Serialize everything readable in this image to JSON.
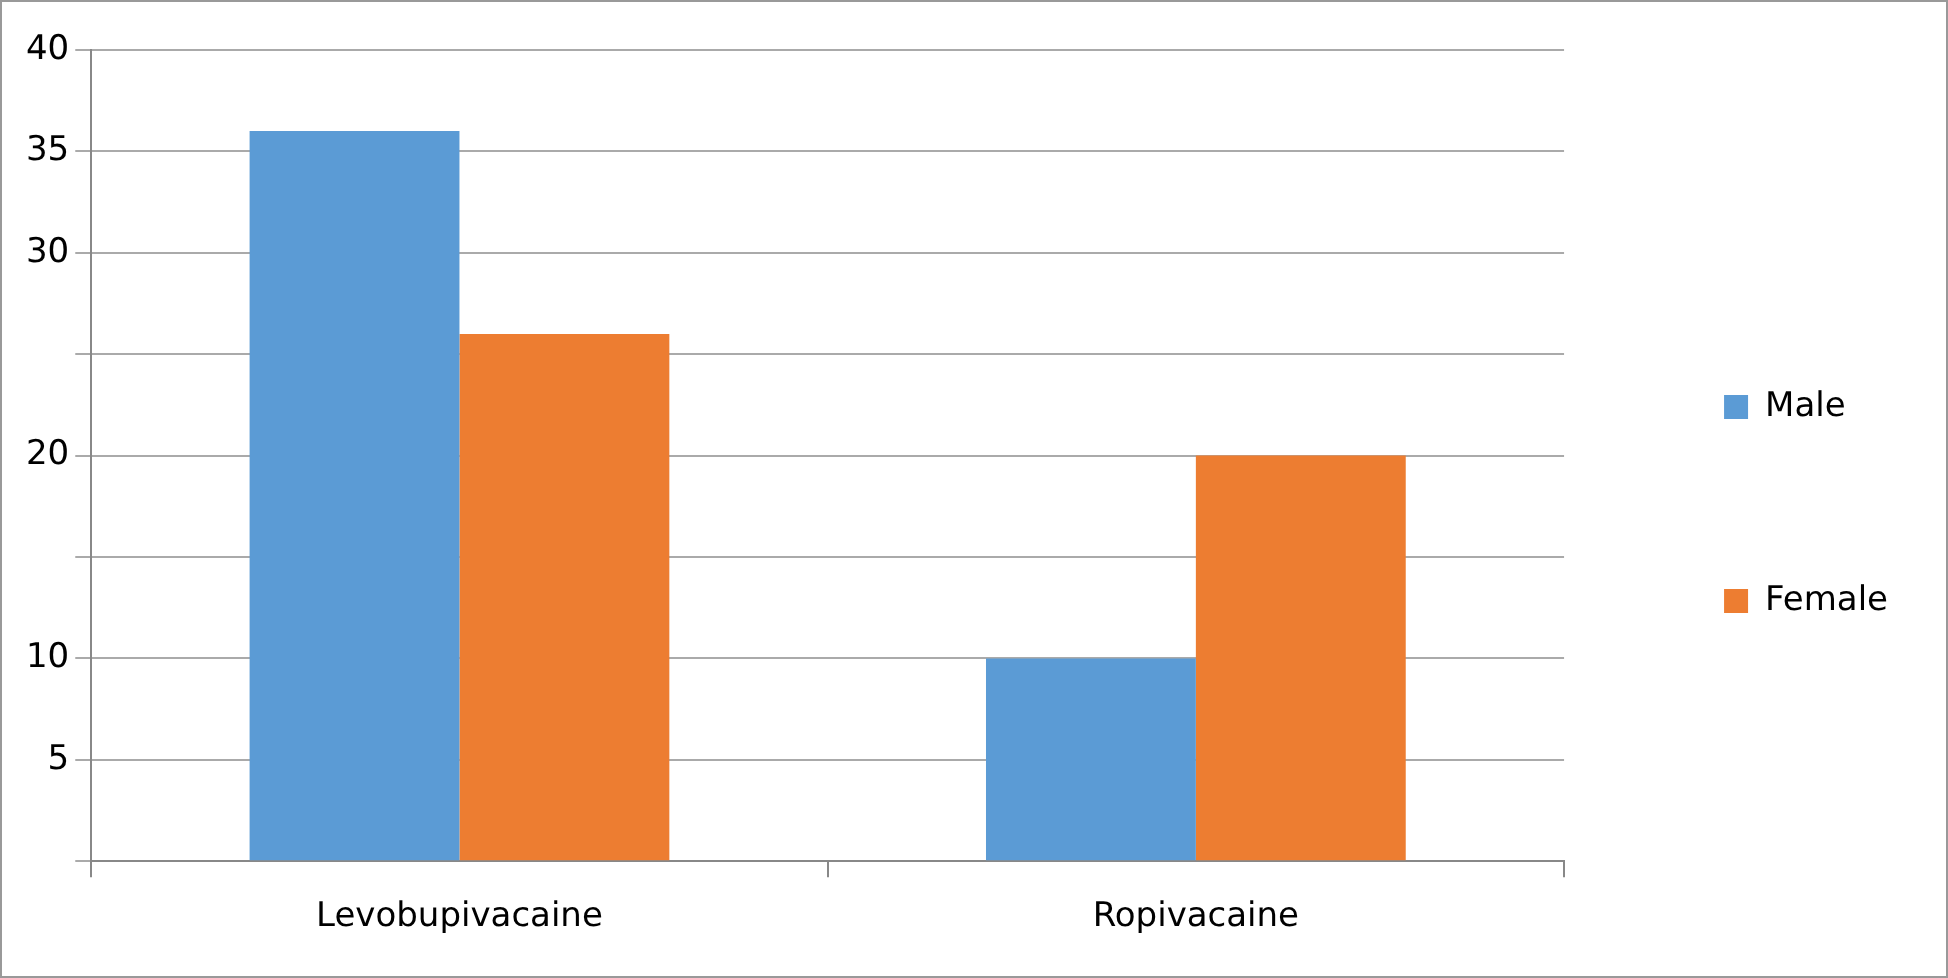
{
  "chart_data": {
    "type": "bar",
    "categories": [
      "Levobupivacaine",
      "Ropivacaine"
    ],
    "series": [
      {
        "name": "Male",
        "color": "#5b9bd5",
        "values": [
          36,
          10
        ]
      },
      {
        "name": "Female",
        "color": "#ed7d31",
        "values": [
          26,
          20
        ]
      }
    ],
    "ylim": [
      0,
      40
    ],
    "yticks": [
      {
        "value": 0,
        "label": null
      },
      5,
      10,
      {
        "value": 15,
        "label": null
      },
      20,
      {
        "value": 25,
        "label": null
      },
      30,
      35,
      40
    ],
    "grid": "y",
    "legend": "right"
  }
}
